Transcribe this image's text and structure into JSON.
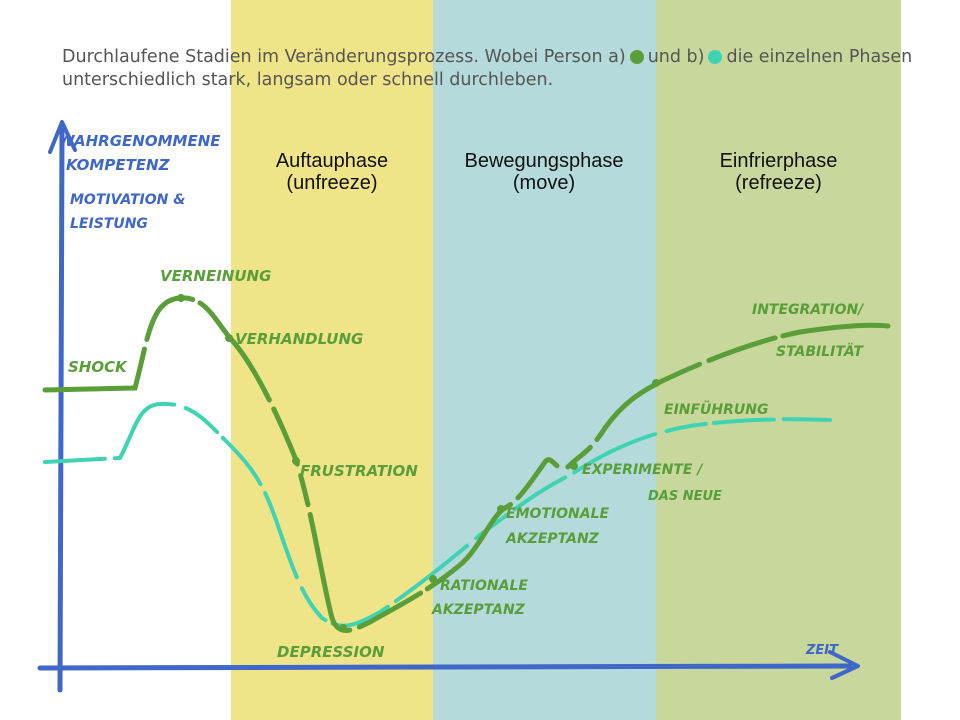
{
  "caption": {
    "part1": "Durchlaufene Stadien im Veränderungsprozess. Wobei Person a)",
    "part2": "und b)",
    "part3": "die einzelnen Phasen unterschiedlich stark, langsam oder schnell durchleben."
  },
  "phases": [
    {
      "name": "Auftauphase",
      "sub": "(unfreeze)"
    },
    {
      "name": "Bewegungsphase",
      "sub": "(move)"
    },
    {
      "name": "Einfrierphase",
      "sub": "(refreeze)"
    }
  ],
  "axes": {
    "y_label_lines": [
      "WAHRGENOMMENE",
      "KOMPETENZ",
      "MOTIVATION &",
      "LEISTUNG"
    ],
    "x_label": "ZEIT"
  },
  "stages": {
    "shock": "SHOCK",
    "verneinung": "VERNEINUNG",
    "verhandlung": "VERHANDLUNG",
    "frustration": "FRUSTRATION",
    "depression": "DEPRESSION",
    "rationale_1": "RATIONALE",
    "rationale_2": "AKZEPTANZ",
    "emotionale_1": "EMOTIONALE",
    "emotionale_2": "AKZEPTANZ",
    "experimente_1": "EXPERIMENTE /",
    "experimente_2": "DAS NEUE",
    "einfuehrung": "EINFÜHRUNG",
    "integration_1": "INTEGRATION/",
    "integration_2": "STABILITÄT"
  },
  "colors": {
    "person_a": "#5a9e3a",
    "person_b": "#3fd3b4",
    "axis": "#3f66c9",
    "band_unfreeze": "#efe488",
    "band_move": "#b4dadb",
    "band_refreeze": "#c8d79c"
  }
}
